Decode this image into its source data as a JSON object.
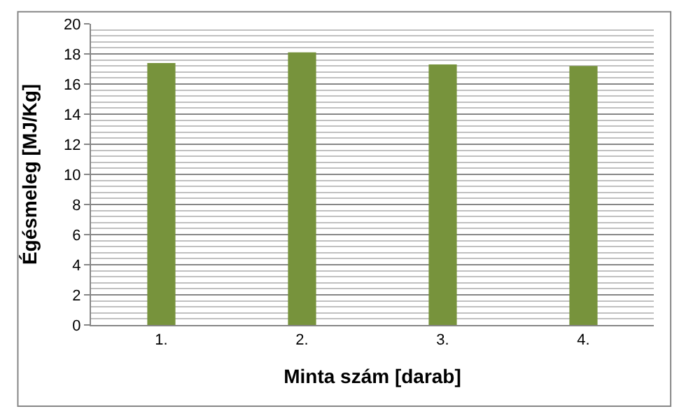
{
  "chart_data": {
    "type": "bar",
    "xlabel": "Minta szám [darab]",
    "ylabel": "Égésmeleg [MJ/Kg]",
    "categories": [
      "1.",
      "2.",
      "3.",
      "4."
    ],
    "values": [
      17.4,
      18.1,
      17.3,
      17.2
    ],
    "color": "#77933c",
    "ylim": [
      0,
      20
    ],
    "yticks": [
      0,
      2,
      4,
      6,
      8,
      10,
      12,
      14,
      16,
      18,
      20
    ],
    "grid": "y"
  }
}
